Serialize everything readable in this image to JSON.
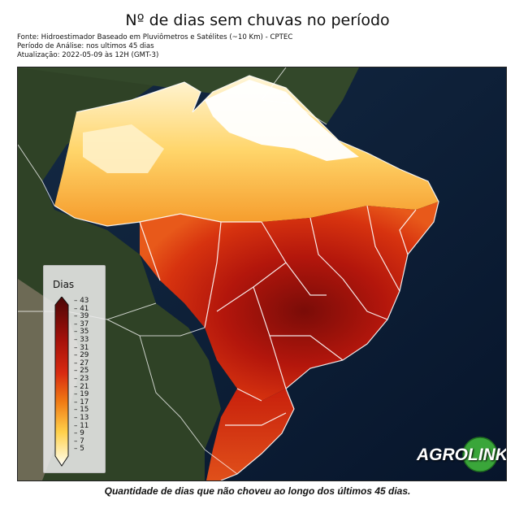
{
  "title": "Nº de dias sem chuvas no período",
  "source_line": "Fonte: Hidroestimador Baseado em Pluviômetros e Satélites (~10 Km) - CPTEC",
  "period_line": "Período de Análise: nos ultimos 45 dias",
  "update_line": "Atualização: 2022-05-09 às 12H (GMT-3)",
  "legend": {
    "title": "Dias",
    "ticks": [
      "43",
      "41",
      "39",
      "37",
      "35",
      "33",
      "31",
      "29",
      "27",
      "25",
      "23",
      "21",
      "19",
      "17",
      "15",
      "13",
      "11",
      "9",
      "7",
      "5"
    ],
    "colors": {
      "low": "#ffffff",
      "mid_low": "#ffd04a",
      "mid": "#f07a14",
      "high": "#c81e0a",
      "max": "#4a0606"
    }
  },
  "logo_text": "AGROLINK",
  "caption": "Quantidade de dias que não choveu ao longo dos últimos 45 dias.",
  "colors": {
    "ocean": "#0a1a33",
    "land_outside": "#2b3d22",
    "border": "#ffffff",
    "logo_green": "#3aa63a"
  }
}
